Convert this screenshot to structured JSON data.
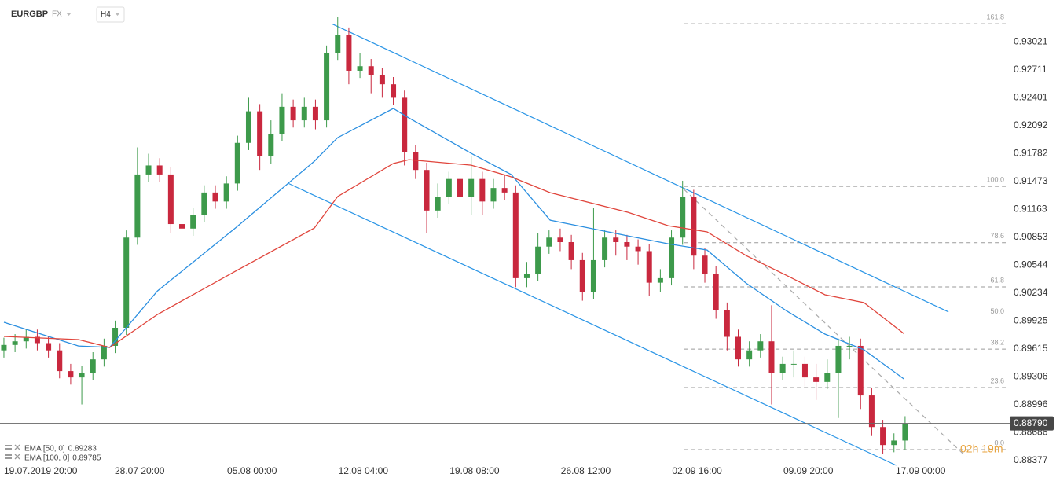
{
  "chart_data": {
    "type": "candlestick",
    "symbol": "EURGBP",
    "market": "FX",
    "timeframe": "H4",
    "countdown": "02h 19m",
    "up_color": "#3d9a4b",
    "down_color": "#c9283e",
    "grid": true,
    "ylim": [
      0.88325,
      0.93484
    ],
    "yticks": [
      0.93021,
      0.92711,
      0.92401,
      0.92092,
      0.91782,
      0.91473,
      0.91163,
      0.90853,
      0.90544,
      0.90234,
      0.89925,
      0.89615,
      0.89306,
      0.88996,
      0.88686,
      0.88377
    ],
    "xlim": [
      -0.35,
      90.4
    ],
    "xticks": [
      {
        "value": 0,
        "label": "19.07.2019 20:00"
      },
      {
        "value": 12.2,
        "label": "28.07 20:00"
      },
      {
        "value": 22.3,
        "label": "05.08 00:00"
      },
      {
        "value": 32.3,
        "label": "12.08 04:00"
      },
      {
        "value": 42.3,
        "label": "19.08 08:00"
      },
      {
        "value": 52.3,
        "label": "26.08 12:00"
      },
      {
        "value": 62.3,
        "label": "02.09 16:00"
      },
      {
        "value": 72.3,
        "label": "09.09 20:00"
      },
      {
        "value": 82.4,
        "label": "17.09 00:00"
      }
    ],
    "last_price": {
      "value": 0.8879,
      "label": "0.88790"
    },
    "x": [
      0,
      1,
      2,
      3,
      4,
      5,
      6,
      7,
      8,
      9,
      10,
      11,
      12,
      13,
      14,
      15,
      16,
      17,
      18,
      19,
      20,
      21,
      22,
      23,
      24,
      25,
      26,
      27,
      28,
      29,
      30,
      31,
      32,
      33,
      34,
      35,
      36,
      37,
      38,
      39,
      40,
      41,
      42,
      43,
      44,
      45,
      46,
      47,
      48,
      49,
      50,
      51,
      52,
      53,
      54,
      55,
      56,
      57,
      58,
      59,
      60,
      61,
      62,
      63,
      64,
      65,
      66,
      67,
      68,
      69,
      70,
      71,
      72,
      73,
      74,
      75,
      76,
      77,
      78,
      79,
      80,
      81
    ],
    "open": [
      0.896,
      0.8966,
      0.897,
      0.8975,
      0.8968,
      0.896,
      0.8937,
      0.893,
      0.8935,
      0.895,
      0.8965,
      0.8985,
      0.9085,
      0.9155,
      0.9165,
      0.9155,
      0.91,
      0.9095,
      0.911,
      0.9135,
      0.9125,
      0.9145,
      0.919,
      0.9225,
      0.9175,
      0.92,
      0.923,
      0.9215,
      0.923,
      0.9215,
      0.929,
      0.931,
      0.927,
      0.9275,
      0.9265,
      0.9255,
      0.924,
      0.918,
      0.916,
      0.9115,
      0.913,
      0.915,
      0.913,
      0.915,
      0.9125,
      0.914,
      0.9135,
      0.904,
      0.9045,
      0.9075,
      0.9085,
      0.908,
      0.906,
      0.9025,
      0.906,
      0.9085,
      0.908,
      0.9075,
      0.907,
      0.9035,
      0.904,
      0.9085,
      0.913,
      0.9065,
      0.9045,
      0.9005,
      0.8975,
      0.895,
      0.896,
      0.897,
      0.8935,
      0.8945,
      0.8945,
      0.893,
      0.8925,
      0.8935,
      0.8965,
      0.8965,
      0.891,
      0.8875,
      0.8855,
      0.886
    ],
    "high": [
      0.8974,
      0.8978,
      0.8983,
      0.8983,
      0.8976,
      0.8968,
      0.8945,
      0.8943,
      0.8958,
      0.8973,
      0.8993,
      0.9093,
      0.9185,
      0.9178,
      0.9173,
      0.9163,
      0.9115,
      0.9118,
      0.9143,
      0.9143,
      0.9153,
      0.9198,
      0.924,
      0.9233,
      0.9215,
      0.9245,
      0.9238,
      0.924,
      0.9238,
      0.9298,
      0.933,
      0.9318,
      0.929,
      0.9283,
      0.9273,
      0.9263,
      0.9248,
      0.9188,
      0.9168,
      0.9145,
      0.9158,
      0.917,
      0.9175,
      0.9158,
      0.915,
      0.9155,
      0.9143,
      0.9058,
      0.909,
      0.9093,
      0.9095,
      0.9088,
      0.9068,
      0.9118,
      0.9093,
      0.9093,
      0.9088,
      0.9083,
      0.9078,
      0.905,
      0.9093,
      0.9148,
      0.9138,
      0.9073,
      0.9053,
      0.9013,
      0.8983,
      0.897,
      0.8978,
      0.901,
      0.8953,
      0.896,
      0.8953,
      0.8945,
      0.895,
      0.8973,
      0.8975,
      0.8973,
      0.8918,
      0.8883,
      0.8868,
      0.8887
    ],
    "low": [
      0.8952,
      0.8958,
      0.8962,
      0.896,
      0.8952,
      0.8929,
      0.8922,
      0.89,
      0.8927,
      0.8942,
      0.8957,
      0.8977,
      0.9077,
      0.9147,
      0.9147,
      0.909,
      0.9087,
      0.9087,
      0.9102,
      0.9117,
      0.9117,
      0.9137,
      0.9182,
      0.916,
      0.9167,
      0.9192,
      0.9207,
      0.9207,
      0.9205,
      0.9207,
      0.9282,
      0.9255,
      0.9262,
      0.9245,
      0.924,
      0.9232,
      0.9165,
      0.915,
      0.909,
      0.9107,
      0.9122,
      0.9115,
      0.911,
      0.911,
      0.9117,
      0.9127,
      0.903,
      0.903,
      0.9037,
      0.9067,
      0.907,
      0.905,
      0.9015,
      0.9017,
      0.9052,
      0.9065,
      0.906,
      0.9055,
      0.902,
      0.9025,
      0.9032,
      0.9077,
      0.905,
      0.9035,
      0.8995,
      0.896,
      0.8942,
      0.8942,
      0.8952,
      0.89,
      0.8927,
      0.893,
      0.892,
      0.8905,
      0.8917,
      0.8885,
      0.895,
      0.8895,
      0.8865,
      0.8845,
      0.8847,
      0.885
    ],
    "close": [
      0.8966,
      0.897,
      0.8975,
      0.8968,
      0.896,
      0.8937,
      0.893,
      0.8935,
      0.895,
      0.8965,
      0.8985,
      0.9085,
      0.9155,
      0.9165,
      0.9155,
      0.91,
      0.9095,
      0.911,
      0.9135,
      0.9125,
      0.9145,
      0.919,
      0.9225,
      0.9175,
      0.92,
      0.923,
      0.9215,
      0.923,
      0.9215,
      0.929,
      0.931,
      0.927,
      0.9275,
      0.9265,
      0.9255,
      0.924,
      0.918,
      0.916,
      0.9115,
      0.913,
      0.915,
      0.913,
      0.915,
      0.9125,
      0.914,
      0.9135,
      0.904,
      0.9045,
      0.9075,
      0.9085,
      0.908,
      0.906,
      0.9025,
      0.906,
      0.9085,
      0.908,
      0.9075,
      0.907,
      0.9035,
      0.904,
      0.9085,
      0.913,
      0.9065,
      0.9045,
      0.9005,
      0.8975,
      0.895,
      0.896,
      0.897,
      0.8935,
      0.8945,
      0.8945,
      0.893,
      0.8925,
      0.8935,
      0.8965,
      0.8965,
      0.891,
      0.8875,
      0.8855,
      0.886,
      0.8879
    ],
    "series": [
      {
        "name": "EMA [50, 0]",
        "last_value": 0.89283,
        "color": "#2b8fe0",
        "x": [
          0,
          6.7,
          9.5,
          13.8,
          20.8,
          27.9,
          30.0,
          35.0,
          36.4,
          42.0,
          45.6,
          49.1,
          56.1,
          59.7,
          63.2,
          66.7,
          70.3,
          73.8,
          77.3,
          80.9
        ],
        "values": [
          0.89911,
          0.89649,
          0.89632,
          0.90259,
          0.90956,
          0.91697,
          0.91958,
          0.92281,
          0.92176,
          0.91784,
          0.91549,
          0.91043,
          0.90869,
          0.90782,
          0.90712,
          0.90346,
          0.90041,
          0.8978,
          0.89606,
          0.89283
        ]
      },
      {
        "name": "EMA [100, 0]",
        "last_value": 0.89785,
        "color": "#e0453c",
        "x": [
          0,
          6.7,
          9.5,
          13.8,
          20.8,
          27.9,
          30.0,
          35.0,
          36.4,
          42.0,
          45.6,
          49.1,
          56.1,
          59.7,
          63.2,
          66.7,
          70.3,
          73.8,
          77.3,
          80.9
        ],
        "values": [
          0.89754,
          0.89719,
          0.89632,
          0.89998,
          0.90477,
          0.90956,
          0.91305,
          0.91671,
          0.91714,
          0.91653,
          0.91523,
          0.91348,
          0.9113,
          0.90982,
          0.90913,
          0.90651,
          0.90433,
          0.90216,
          0.90129,
          0.89785
        ]
      }
    ],
    "trendlines": [
      {
        "color": "#2a95e6",
        "x": [
          29.45,
          84.9
        ],
        "values": [
          0.93222,
          0.90026
        ]
      },
      {
        "color": "#2a95e6",
        "x": [
          25.6,
          80.2
        ],
        "values": [
          0.91449,
          0.88325
        ]
      },
      {
        "color": "#aaaaaa",
        "dashed": true,
        "x": [
          61.1,
          86.5
        ],
        "values": [
          0.91388,
          0.88419
        ]
      }
    ],
    "fibonacci": {
      "start": 0.88499,
      "end": 0.91418,
      "x_start": 61.1,
      "levels": [
        161.8,
        {
          "value": 100,
          "label": "100.0"
        },
        78.6,
        61.8,
        {
          "value": 50,
          "label": "50.0"
        },
        38.2,
        23.6,
        {
          "value": 0,
          "label": "0.0"
        }
      ]
    }
  }
}
